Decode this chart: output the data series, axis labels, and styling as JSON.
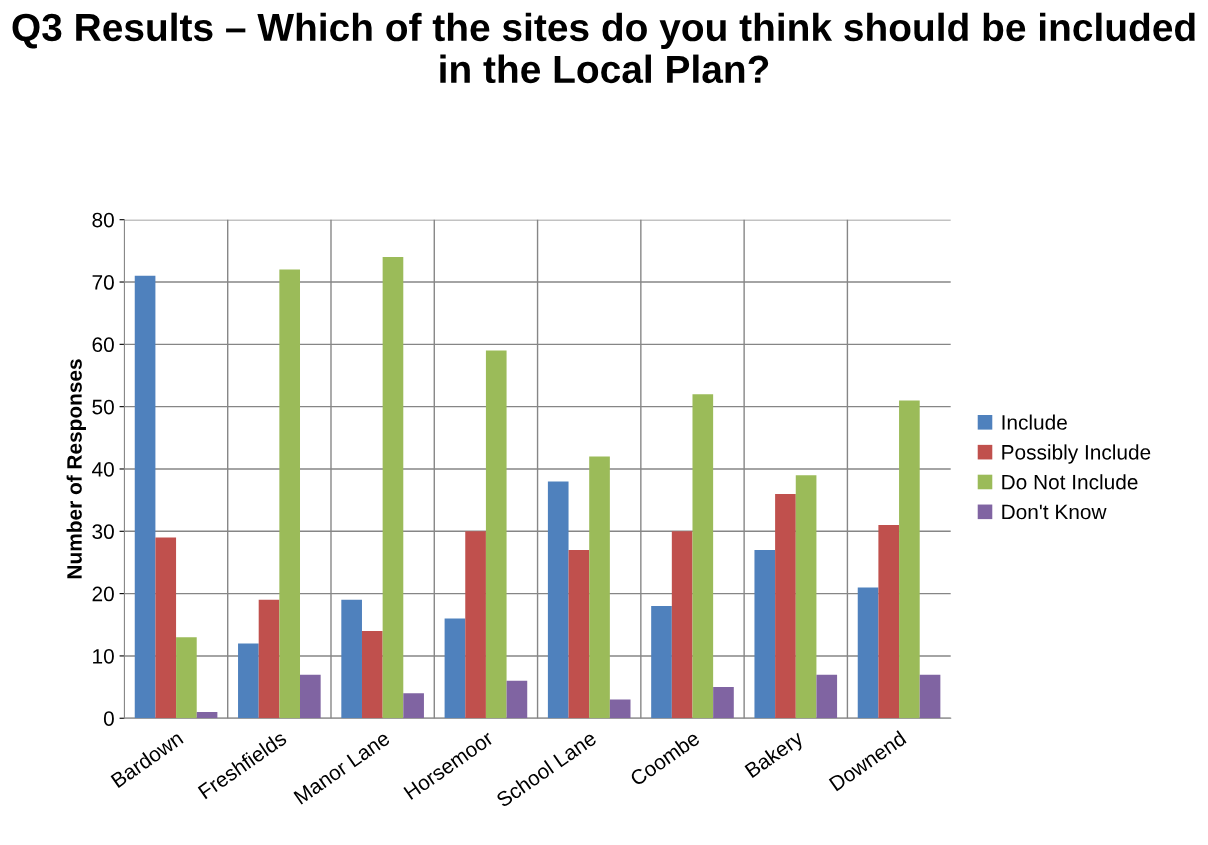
{
  "chart_data": {
    "type": "bar",
    "title": "Q3 Results – Which of the sites do you think should be included in the Local Plan?",
    "ylabel": "Number of Responses",
    "categories": [
      "Bardown",
      "Freshfields",
      "Manor Lane",
      "Horsemoor",
      "School Lane",
      "Coombe",
      "Bakery",
      "Downend"
    ],
    "series": [
      {
        "name": "Include",
        "color": "#4f81bd",
        "values": [
          71,
          12,
          19,
          16,
          38,
          18,
          27,
          21
        ]
      },
      {
        "name": "Possibly Include",
        "color": "#c0504d",
        "values": [
          29,
          19,
          14,
          30,
          27,
          30,
          36,
          31
        ]
      },
      {
        "name": "Do Not Include",
        "color": "#9bbb59",
        "values": [
          13,
          72,
          74,
          59,
          42,
          52,
          39,
          51
        ]
      },
      {
        "name": "Don't Know",
        "color": "#8064a2",
        "values": [
          1,
          7,
          4,
          6,
          3,
          5,
          7,
          7
        ]
      }
    ],
    "ylim": [
      0,
      80
    ],
    "yticks": [
      0,
      10,
      20,
      30,
      40,
      50,
      60,
      70,
      80
    ],
    "grid": true,
    "legend": "right"
  }
}
